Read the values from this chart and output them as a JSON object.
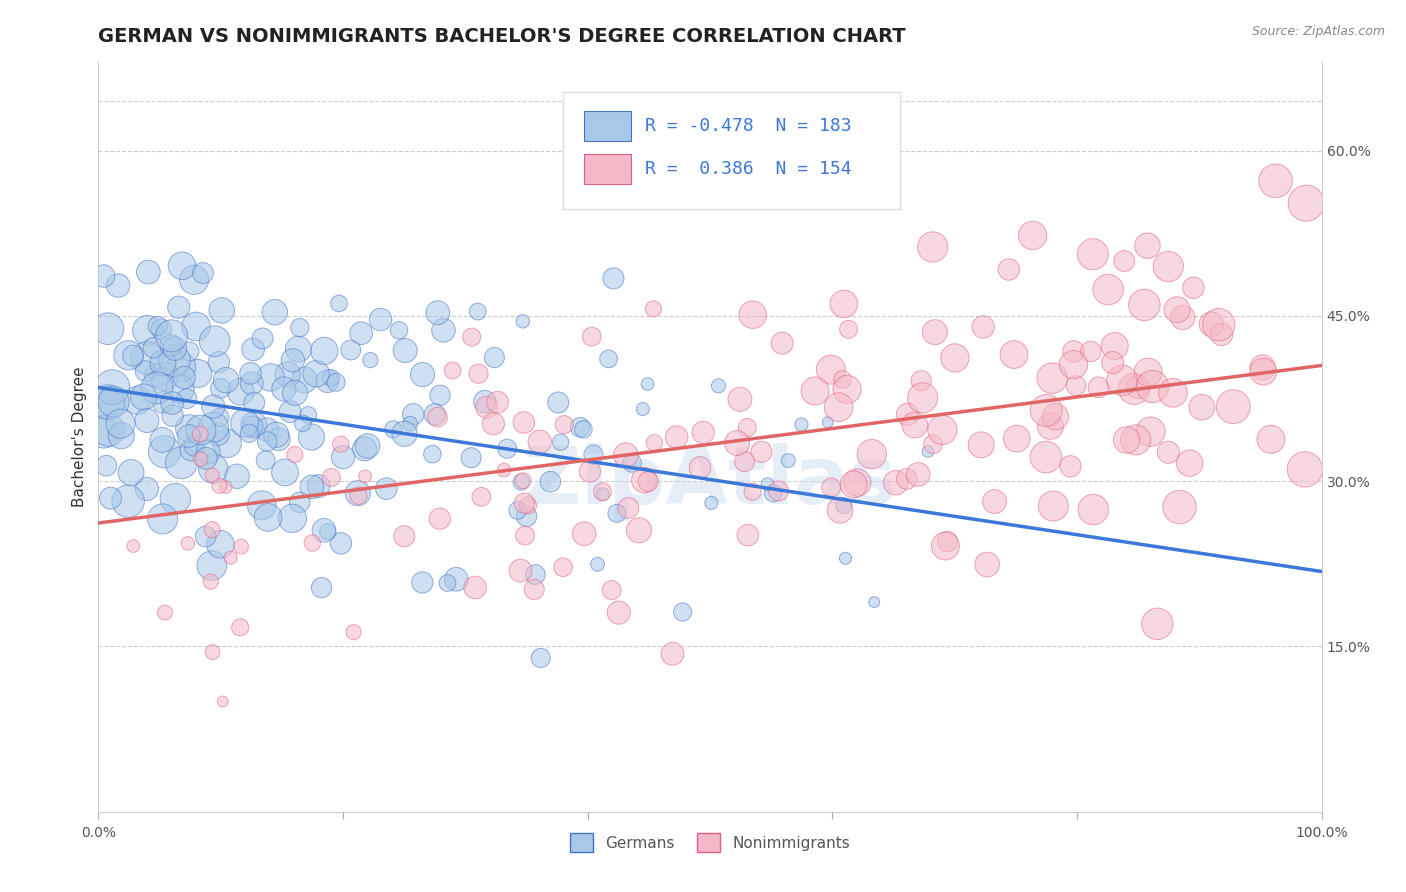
{
  "title": "GERMAN VS NONIMMIGRANTS BACHELOR'S DEGREE CORRELATION CHART",
  "source_text": "Source: ZipAtlas.com",
  "ylabel": "Bachelor's Degree",
  "xlim": [
    0,
    1.0
  ],
  "ylim": [
    0.0,
    0.68
  ],
  "x_ticks": [
    0.0,
    0.2,
    0.4,
    0.6,
    0.8,
    1.0
  ],
  "x_tick_labels": [
    "0.0%",
    "",
    "",
    "",
    "",
    "100.0%"
  ],
  "y_ticks_right": [
    0.15,
    0.3,
    0.45,
    0.6
  ],
  "y_tick_labels_right": [
    "15.0%",
    "30.0%",
    "45.0%",
    "60.0%"
  ],
  "blue_fill": "#a8c8e8",
  "blue_edge": "#4472c4",
  "pink_fill": "#f4b8c8",
  "pink_edge": "#e06080",
  "blue_line_color": "#3c78d8",
  "pink_line_color": "#e06666",
  "legend_R1": "-0.478",
  "legend_N1": "183",
  "legend_R2": "0.386",
  "legend_N2": "154",
  "legend_label1": "Germans",
  "legend_label2": "Nonimmigrants",
  "watermark": "ZipAtlas",
  "blue_trend_x0": 0.0,
  "blue_trend_y0": 0.385,
  "blue_trend_x1": 1.0,
  "blue_trend_y1": 0.218,
  "pink_trend_x0": 0.0,
  "pink_trend_y0": 0.262,
  "pink_trend_x1": 1.0,
  "pink_trend_y1": 0.405,
  "title_fontsize": 14,
  "axis_label_fontsize": 11,
  "tick_fontsize": 10,
  "legend_fontsize": 13
}
